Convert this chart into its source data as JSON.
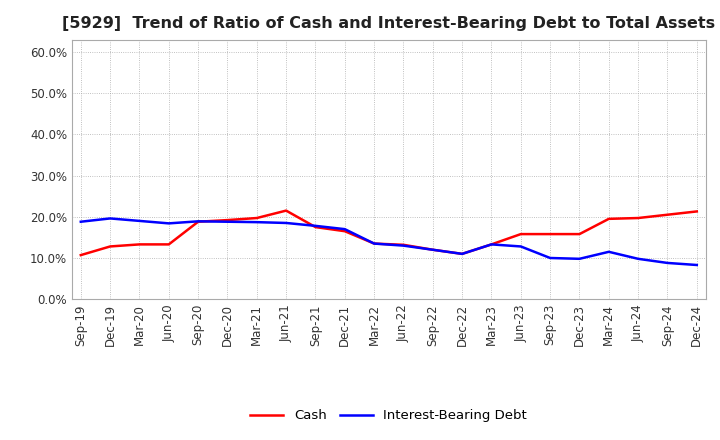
{
  "title": "[5929]  Trend of Ratio of Cash and Interest-Bearing Debt to Total Assets",
  "x_labels": [
    "Sep-19",
    "Dec-19",
    "Mar-20",
    "Jun-20",
    "Sep-20",
    "Dec-20",
    "Mar-21",
    "Jun-21",
    "Sep-21",
    "Dec-21",
    "Mar-22",
    "Jun-22",
    "Sep-22",
    "Dec-22",
    "Mar-23",
    "Jun-23",
    "Sep-23",
    "Dec-23",
    "Mar-24",
    "Jun-24",
    "Sep-24",
    "Dec-24"
  ],
  "cash": [
    0.107,
    0.128,
    0.133,
    0.133,
    0.188,
    0.192,
    0.197,
    0.215,
    0.175,
    0.165,
    0.135,
    0.132,
    0.12,
    0.11,
    0.133,
    0.158,
    0.158,
    0.158,
    0.195,
    0.197,
    0.205,
    0.213
  ],
  "interest_bearing_debt": [
    0.188,
    0.196,
    0.19,
    0.184,
    0.189,
    0.188,
    0.187,
    0.185,
    0.178,
    0.17,
    0.135,
    0.13,
    0.12,
    0.11,
    0.133,
    0.128,
    0.1,
    0.098,
    0.115,
    0.098,
    0.088,
    0.083
  ],
  "cash_color": "#ff0000",
  "ibd_color": "#0000ff",
  "ylim": [
    0.0,
    0.63
  ],
  "yticks": [
    0.0,
    0.1,
    0.2,
    0.3,
    0.4,
    0.5,
    0.6
  ],
  "ytick_labels": [
    "0.0%",
    "10.0%",
    "20.0%",
    "30.0%",
    "40.0%",
    "50.0%",
    "60.0%"
  ],
  "legend_cash": "Cash",
  "legend_ibd": "Interest-Bearing Debt",
  "background_color": "#ffffff",
  "grid_color": "#999999",
  "line_width": 1.8,
  "title_fontsize": 11.5,
  "tick_fontsize": 8.5,
  "legend_fontsize": 9.5
}
